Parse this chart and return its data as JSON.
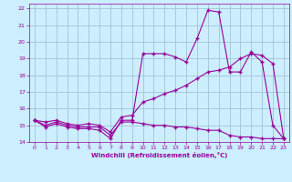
{
  "xlabel": "Windchill (Refroidissement éolien,°C)",
  "bg_color": "#cceeff",
  "line_color": "#990099",
  "grid_color": "#99bbcc",
  "xlim": [
    -0.5,
    23.5
  ],
  "ylim": [
    14,
    22.3
  ],
  "yticks": [
    14,
    15,
    16,
    17,
    18,
    19,
    20,
    21,
    22
  ],
  "xticks": [
    0,
    1,
    2,
    3,
    4,
    5,
    6,
    7,
    8,
    9,
    10,
    11,
    12,
    13,
    14,
    15,
    16,
    17,
    18,
    19,
    20,
    21,
    22,
    23
  ],
  "line1_x": [
    0,
    1,
    2,
    3,
    4,
    5,
    6,
    7,
    8,
    9,
    10,
    11,
    12,
    13,
    14,
    15,
    16,
    17,
    18,
    19,
    20,
    21,
    22,
    23
  ],
  "line1_y": [
    15.3,
    14.9,
    15.1,
    14.9,
    14.8,
    14.8,
    14.7,
    14.2,
    15.3,
    15.3,
    19.3,
    19.3,
    19.3,
    19.1,
    18.8,
    20.2,
    21.9,
    21.8,
    18.2,
    18.2,
    19.4,
    18.8,
    15.0,
    14.2
  ],
  "line2_x": [
    0,
    1,
    2,
    3,
    4,
    5,
    6,
    7,
    8,
    9,
    10,
    11,
    12,
    13,
    14,
    15,
    16,
    17,
    18,
    19,
    20,
    21,
    22,
    23
  ],
  "line2_y": [
    15.3,
    15.2,
    15.3,
    15.1,
    15.0,
    15.1,
    15.0,
    14.6,
    15.5,
    15.6,
    16.4,
    16.6,
    16.9,
    17.1,
    17.4,
    17.8,
    18.2,
    18.3,
    18.5,
    19.0,
    19.3,
    19.2,
    18.7,
    14.2
  ],
  "line3_x": [
    0,
    1,
    2,
    3,
    4,
    5,
    6,
    7,
    8,
    9,
    10,
    11,
    12,
    13,
    14,
    15,
    16,
    17,
    18,
    19,
    20,
    21,
    22,
    23
  ],
  "line3_y": [
    15.3,
    15.0,
    15.2,
    15.0,
    14.9,
    14.9,
    14.9,
    14.4,
    15.2,
    15.2,
    15.1,
    15.0,
    15.0,
    14.9,
    14.9,
    14.8,
    14.7,
    14.7,
    14.4,
    14.3,
    14.3,
    14.2,
    14.2,
    14.2
  ]
}
